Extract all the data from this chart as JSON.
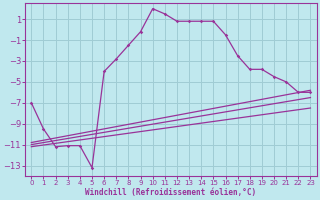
{
  "background_color": "#c0e8ee",
  "grid_color": "#a0ccd4",
  "line_color": "#993399",
  "xlim": [
    -0.5,
    23.5
  ],
  "ylim": [
    -14,
    2.5
  ],
  "yticks": [
    1,
    -1,
    -3,
    -5,
    -7,
    -9,
    -11,
    -13
  ],
  "xticks": [
    0,
    1,
    2,
    3,
    4,
    5,
    6,
    7,
    8,
    9,
    10,
    11,
    12,
    13,
    14,
    15,
    16,
    17,
    18,
    19,
    20,
    21,
    22,
    23
  ],
  "xlabel": "Windchill (Refroidissement éolien,°C)",
  "series": [
    {
      "x": [
        0,
        1,
        2,
        3,
        4,
        5,
        6,
        7,
        8,
        9,
        10,
        11,
        12,
        13,
        14,
        15,
        16,
        17,
        18,
        19,
        20,
        21,
        22,
        23
      ],
      "y": [
        -7.0,
        -9.5,
        -11.2,
        -11.1,
        -11.1,
        -13.2,
        -4.0,
        -2.8,
        -1.5,
        -0.2,
        2.0,
        1.5,
        0.8,
        0.8,
        0.8,
        0.8,
        -0.5,
        -2.5,
        -3.8,
        -3.8,
        -4.5,
        -5.0,
        -6.0,
        -6.0
      ]
    },
    {
      "x": [
        0,
        23
      ],
      "y": [
        -10.8,
        -5.8
      ]
    },
    {
      "x": [
        0,
        23
      ],
      "y": [
        -11.0,
        -6.5
      ]
    },
    {
      "x": [
        0,
        23
      ],
      "y": [
        -11.2,
        -7.5
      ]
    }
  ]
}
